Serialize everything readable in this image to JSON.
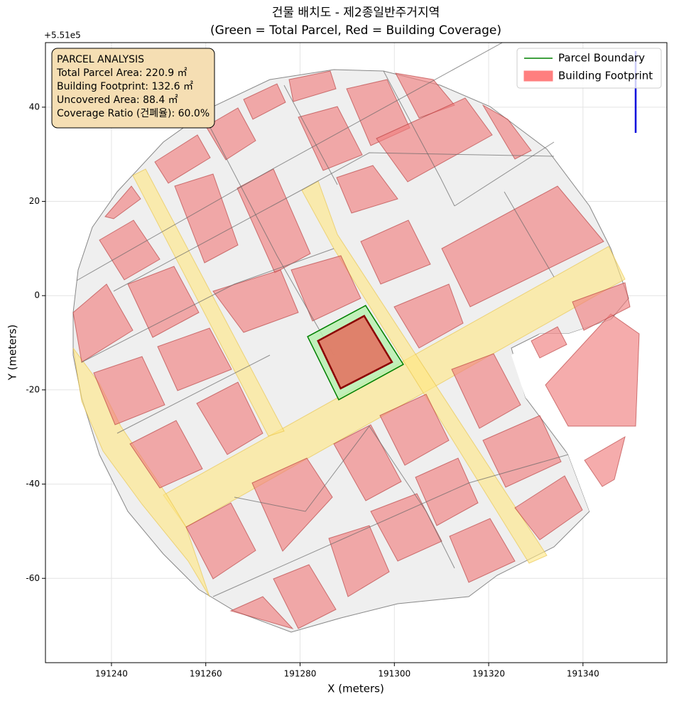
{
  "chart_data": {
    "type": "polygon",
    "title": "건물 배치도 - 제2종일반주거지역",
    "subtitle": "(Green = Total Parcel, Red = Building Coverage)",
    "x_label": "X (meters)",
    "y_label": "Y (meters)",
    "y_offset_text": "+5.51e5",
    "xlim": [
      191226,
      191357.8
    ],
    "ylim": [
      -77.9,
      53.7
    ],
    "xticks": [
      191240,
      191260,
      191280,
      191300,
      191320,
      191340
    ],
    "yticks": [
      40,
      20,
      0,
      -20,
      -40,
      -60
    ],
    "grid": true,
    "legend_position": "upper right",
    "info_box": {
      "lines": [
        "PARCEL ANALYSIS",
        "Total Parcel Area: 220.9 ㎡",
        "Building Footprint: 132.6 ㎡",
        "Uncovered Area: 88.4 ㎡",
        "Coverage Ratio (건폐율): 60.0%"
      ]
    },
    "series": [
      {
        "name": "Parcel Boundary",
        "color": "#008000",
        "fill": "#b8f0b0",
        "x": [
          191281.6,
          191293.9,
          191301.9,
          191288.2
        ],
        "y": [
          -8.7,
          -2.1,
          -14.6,
          -22.1
        ]
      },
      {
        "name": "Building Footprint",
        "color": "#ff7f7f",
        "fill": "#e07a66",
        "edge": "#8b0000",
        "x": [
          191283.8,
          191293.6,
          191299.5,
          191288.6
        ],
        "y": [
          -9.6,
          -4.3,
          -14.1,
          -19.7
        ]
      }
    ]
  }
}
